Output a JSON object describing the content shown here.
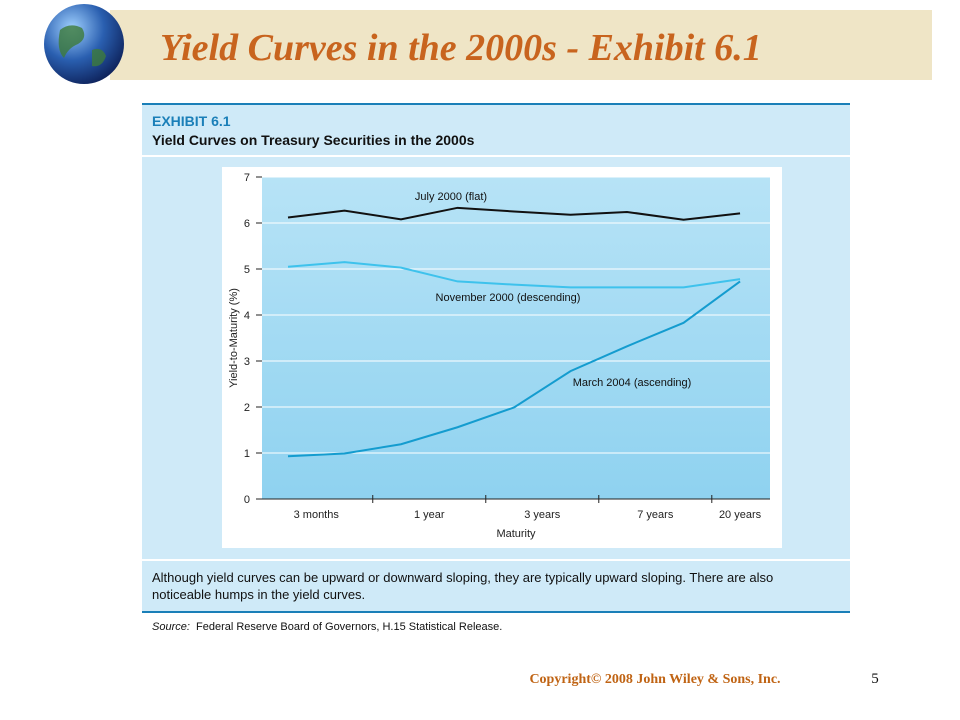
{
  "slide": {
    "title": "Yield Curves in the 2000s - Exhibit 6.1",
    "copyright": "Copyright© 2008 John Wiley & Sons, Inc.",
    "page_number": "5"
  },
  "exhibit": {
    "label": "EXHIBIT 6.1",
    "title": "Yield Curves on Treasury Securities in the 2000s",
    "caption": [
      "Although yield curves can be upward or downward sloping, they are typically upward sloping. There are also",
      "noticeable humps in the yield curves."
    ],
    "source_label": "Source:",
    "source": "Federal Reserve Board of Governors, H.15 Statistical Release."
  },
  "chart_data": {
    "type": "line",
    "x_label": "Maturity",
    "y_label": "Yield-to-Maturity (%)",
    "x": [
      0,
      1,
      2,
      3,
      4,
      5,
      6,
      7,
      8
    ],
    "xlim": [
      -0.46,
      8.53
    ],
    "xticks": [
      {
        "value": 0.5,
        "label": "3 months"
      },
      {
        "value": 2.5,
        "label": "1 year"
      },
      {
        "value": 4.5,
        "label": "3 years"
      },
      {
        "value": 6.5,
        "label": "7 years"
      },
      {
        "value": 8,
        "label": "20 years"
      }
    ],
    "x_tick_marks": [
      1.5,
      3.5,
      5.5,
      7.5
    ],
    "ylim": [
      0,
      7
    ],
    "yticks": [
      0,
      1,
      2,
      3,
      4,
      5,
      6,
      7
    ],
    "series": [
      {
        "name": "July 2000 (flat)",
        "color": "#111111",
        "values": [
          6.12,
          6.27,
          6.08,
          6.33,
          6.25,
          6.18,
          6.24,
          6.07,
          6.21
        ]
      },
      {
        "name": "November 2000 (descending)",
        "color": "#3ec2ec",
        "values": [
          5.05,
          5.15,
          5.03,
          4.73,
          4.66,
          4.6,
          4.6,
          4.6,
          4.78
        ]
      },
      {
        "name": "March 2004 (ascending)",
        "color": "#149ccf",
        "values": [
          0.93,
          0.99,
          1.19,
          1.56,
          1.99,
          2.78,
          3.32,
          3.83,
          4.73
        ]
      }
    ]
  }
}
